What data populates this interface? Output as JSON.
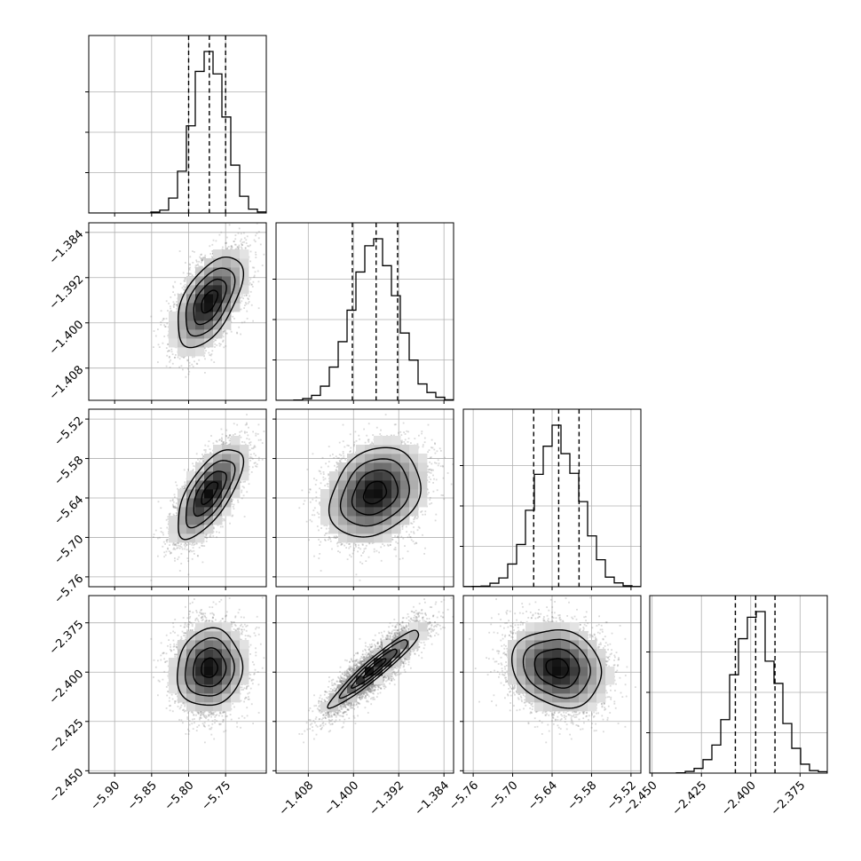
{
  "chart_data": {
    "type": "corner",
    "parameters": [
      {
        "id": "p1",
        "range": [
          -5.935,
          -5.695
        ],
        "ticks": [
          -5.9,
          -5.85,
          -5.8,
          -5.75
        ],
        "tick_labels": [
          "−5.90",
          "−5.85",
          "−5.80",
          "−5.75"
        ],
        "quantiles": [
          -5.8,
          -5.772,
          -5.75
        ],
        "mean": -5.772,
        "sd": 0.022
      },
      {
        "id": "p2",
        "range": [
          -1.4137,
          -1.3823
        ],
        "ticks": [
          -1.408,
          -1.4,
          -1.392,
          -1.384
        ],
        "tick_labels": [
          "−1.408",
          "−1.400",
          "−1.392",
          "−1.384"
        ],
        "quantiles": [
          -1.4002,
          -1.396,
          -1.3922
        ],
        "mean": -1.3962,
        "sd": 0.004
      },
      {
        "id": "p3",
        "range": [
          -5.775,
          -5.505
        ],
        "ticks": [
          -5.76,
          -5.7,
          -5.64,
          -5.58,
          -5.52
        ],
        "tick_labels": [
          "−5.76",
          "−5.70",
          "−5.64",
          "−5.58",
          "−5.52"
        ],
        "quantiles": [
          -5.668,
          -5.63,
          -5.599
        ],
        "mean": -5.632,
        "sd": 0.034
      },
      {
        "id": "p4",
        "range": [
          -2.4512,
          -2.3612
        ],
        "ticks": [
          -2.45,
          -2.425,
          -2.4,
          -2.375
        ],
        "tick_labels": [
          "−2.450",
          "−2.425",
          "−2.400",
          "−2.375"
        ],
        "quantiles": [
          -2.4078,
          -2.3975,
          -2.3877
        ],
        "mean": -2.3979,
        "sd": 0.0098
      }
    ],
    "correlations": [
      {
        "i": 1,
        "j": 0,
        "rho": 0.55
      },
      {
        "i": 2,
        "j": 0,
        "rho": 0.68
      },
      {
        "i": 2,
        "j": 1,
        "rho": 0.25
      },
      {
        "i": 3,
        "j": 0,
        "rho": 0.08
      },
      {
        "i": 3,
        "j": 1,
        "rho": 0.95
      },
      {
        "i": 3,
        "j": 2,
        "rho": -0.15
      }
    ],
    "histogram_bins": 20,
    "grid": true,
    "title": "",
    "xlabel": "",
    "ylabel": ""
  }
}
